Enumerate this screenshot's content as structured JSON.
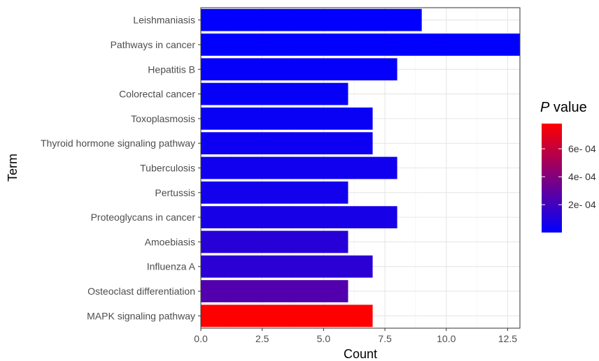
{
  "chart_data": {
    "type": "bar",
    "orientation": "horizontal",
    "xlabel": "Count",
    "ylabel": "Term",
    "xlim": [
      0,
      13
    ],
    "xticks": [
      0.0,
      2.5,
      5.0,
      7.5,
      10.0,
      12.5
    ],
    "xtick_labels": [
      "0.0",
      "2.5",
      "5.0",
      "7.5",
      "10.0",
      "12.5"
    ],
    "grid": true,
    "categories": [
      "Leishmaniasis",
      "Pathways in cancer",
      "Hepatitis B",
      "Colorectal cancer",
      "Toxoplasmosis",
      "Thyroid hormone signaling pathway",
      "Tuberculosis",
      "Pertussis",
      "Proteoglycans in cancer",
      "Amoebiasis",
      "Influenza A",
      "Osteoclast differentiation",
      "MAPK signaling pathway"
    ],
    "values": [
      9,
      13,
      8,
      6,
      7,
      7,
      8,
      6,
      8,
      6,
      7,
      6,
      7
    ],
    "pvalues": [
      5e-06,
      6e-06,
      1.5e-05,
      2e-05,
      3e-05,
      4e-05,
      5e-05,
      6e-05,
      7e-05,
      0.00012,
      0.00013,
      0.00025,
      0.00078
    ],
    "legend": {
      "title_italic": "P",
      "title_rest": " value",
      "position": "right",
      "range": [
        1e-06,
        0.00078
      ],
      "ticks": [
        0.0002,
        0.0004,
        0.0006
      ],
      "tick_labels": [
        "2e- 04",
        "4e- 04",
        "6e- 04"
      ],
      "color_low": "#0000ff",
      "color_high": "#ff0000"
    }
  }
}
